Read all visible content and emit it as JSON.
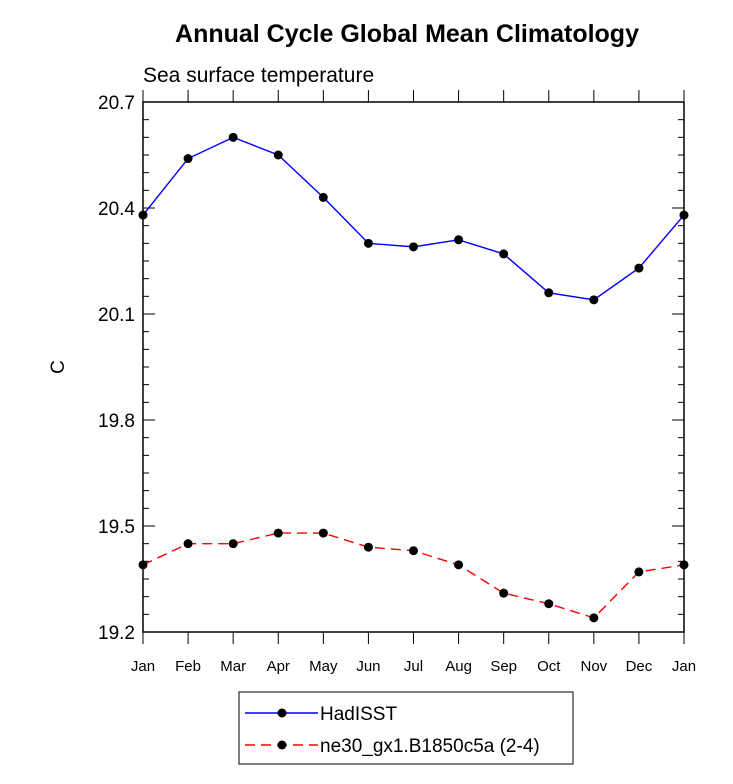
{
  "chart_data": {
    "type": "line",
    "title": "Annual Cycle Global Mean Climatology",
    "subtitle": "Sea surface temperature",
    "xlabel": "",
    "ylabel": "C",
    "categories": [
      "Jan",
      "Feb",
      "Mar",
      "Apr",
      "May",
      "Jun",
      "Jul",
      "Aug",
      "Sep",
      "Oct",
      "Nov",
      "Dec",
      "Jan"
    ],
    "ylim": [
      19.2,
      20.7
    ],
    "yticks": [
      "20.7",
      "20.4",
      "20.1",
      "19.8",
      "19.5",
      "19.2"
    ],
    "grid": false,
    "legend": "bottom",
    "series": [
      {
        "name": "HadISST",
        "color": "#0000ff",
        "line_style": "solid",
        "marker": "circle",
        "values": [
          20.38,
          20.54,
          20.6,
          20.55,
          20.43,
          20.3,
          20.29,
          20.31,
          20.27,
          20.16,
          20.14,
          20.23,
          20.38
        ]
      },
      {
        "name": "ne30_gx1.B1850c5a (2-4)",
        "color": "#ff0000",
        "line_style": "dashed",
        "marker": "circle",
        "values": [
          19.39,
          19.45,
          19.45,
          19.48,
          19.48,
          19.44,
          19.43,
          19.39,
          19.31,
          19.28,
          19.24,
          19.37,
          19.39
        ]
      }
    ]
  }
}
